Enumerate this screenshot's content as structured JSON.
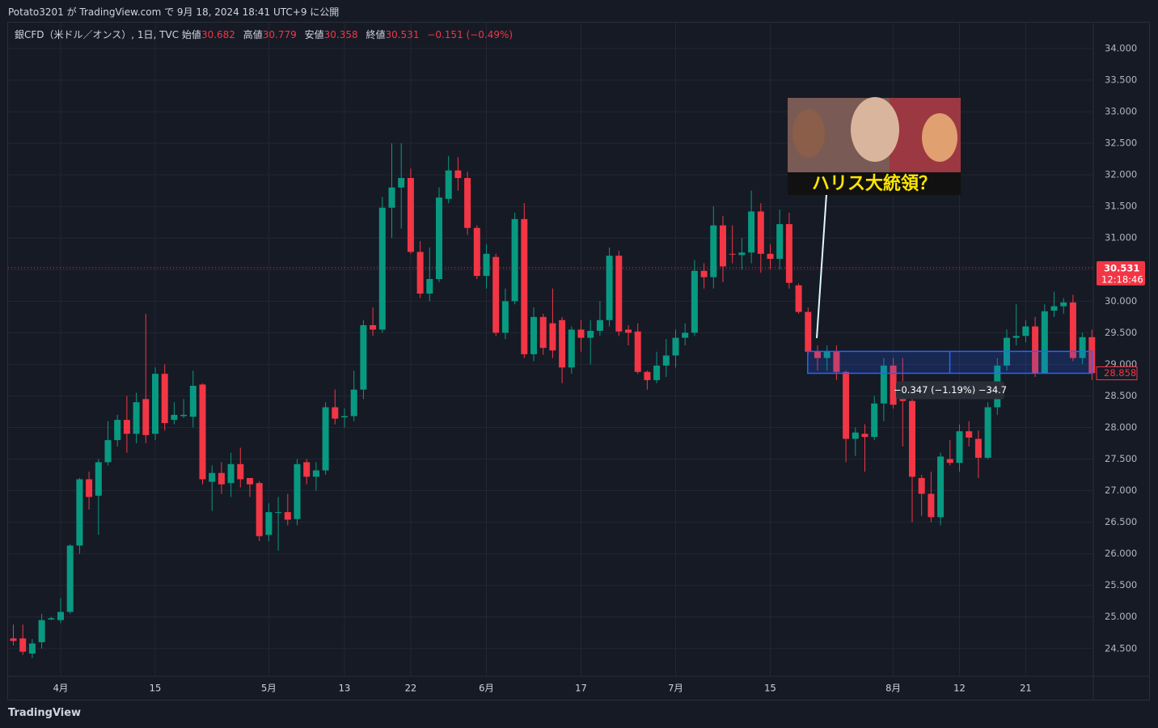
{
  "header": {
    "published": "Potato3201 が TradingView.com で 9月 18, 2024 18:41 UTC+9 に公開"
  },
  "legend": {
    "symbol": "銀CFD（米ドル／オンス）, 1日, TVC",
    "open_label": "始値",
    "open": "30.682",
    "high_label": "高値",
    "high": "30.779",
    "low_label": "安値",
    "low": "30.358",
    "close_label": "終値",
    "close": "30.531",
    "change": "−0.151 (−0.49%)"
  },
  "footer": {
    "brand": "TradingView"
  },
  "chart_data": {
    "type": "candlestick",
    "categories": [
      null,
      null,
      null,
      null,
      null,
      "4月",
      null,
      null,
      null,
      null,
      null,
      null,
      null,
      null,
      null,
      "15",
      null,
      null,
      null,
      null,
      null,
      null,
      null,
      null,
      null,
      null,
      null,
      "5月",
      null,
      null,
      null,
      null,
      null,
      null,
      null,
      "13",
      null,
      null,
      null,
      null,
      null,
      null,
      "22",
      null,
      null,
      null,
      null,
      null,
      null,
      null,
      "6月",
      null,
      null,
      null,
      null,
      null,
      null,
      null,
      null,
      null,
      "17",
      null,
      null,
      null,
      null,
      null,
      null,
      null,
      null,
      null,
      "7月",
      null,
      null,
      null,
      null,
      null,
      null,
      null,
      null,
      null,
      "15",
      null,
      null,
      null,
      null,
      null,
      null,
      null,
      null,
      null,
      null,
      null,
      null,
      "8月",
      null,
      null,
      null,
      null,
      null,
      null,
      "12",
      null,
      null,
      null,
      null,
      null,
      null,
      "21",
      null,
      null,
      null,
      null,
      null,
      null,
      null
    ],
    "open": [
      24.66,
      24.66,
      24.42,
      24.6,
      24.96,
      24.95,
      25.08,
      26.13,
      27.18,
      26.92,
      27.45,
      27.8,
      28.12,
      27.9,
      28.45,
      27.9,
      28.85,
      28.12,
      28.18,
      28.17,
      28.68,
      27.14,
      27.28,
      27.12,
      27.42,
      27.2,
      27.12,
      26.3,
      26.65,
      26.66,
      26.55,
      27.45,
      27.22,
      27.32,
      28.32,
      28.16,
      28.18,
      28.6,
      29.62,
      29.55,
      31.48,
      31.8,
      31.95,
      30.78,
      30.12,
      30.35,
      31.62,
      32.07,
      31.95,
      31.16,
      30.4,
      30.7,
      29.5,
      30.0,
      31.3,
      29.16,
      29.75,
      29.65,
      29.7,
      28.95,
      29.55,
      29.42,
      29.53,
      29.7,
      30.72,
      29.55,
      29.52,
      28.88,
      28.75,
      28.98,
      29.14,
      29.42,
      29.5,
      30.48,
      30.38,
      31.2,
      30.75,
      30.73,
      30.77,
      31.42,
      30.75,
      30.67,
      31.22,
      30.25,
      29.83,
      29.2,
      29.1,
      29.2,
      28.88,
      27.82,
      27.9,
      27.85,
      28.38,
      28.98,
      28.7,
      28.42,
      27.2,
      26.95,
      26.58,
      27.5,
      27.44,
      27.94,
      27.82,
      27.52,
      28.32,
      28.98,
      29.42,
      29.45,
      29.6,
      28.86,
      29.85,
      29.92,
      29.98,
      29.1,
      29.43
    ],
    "high": [
      24.88,
      24.88,
      24.65,
      25.05,
      25.0,
      25.3,
      26.15,
      27.2,
      27.3,
      27.5,
      28.1,
      28.2,
      28.5,
      28.55,
      29.8,
      28.95,
      29.0,
      28.4,
      28.45,
      28.9,
      28.7,
      27.4,
      27.45,
      27.6,
      27.68,
      27.2,
      27.15,
      26.8,
      26.9,
      26.95,
      27.5,
      27.5,
      27.45,
      28.4,
      28.6,
      28.3,
      28.9,
      29.7,
      29.9,
      31.65,
      32.5,
      32.5,
      32.1,
      30.95,
      30.85,
      31.8,
      32.3,
      32.28,
      32.05,
      31.2,
      30.9,
      30.75,
      30.2,
      31.4,
      31.55,
      29.9,
      29.8,
      30.2,
      29.75,
      29.6,
      29.7,
      29.7,
      30.0,
      30.85,
      30.8,
      29.62,
      29.65,
      28.9,
      29.2,
      29.4,
      29.55,
      29.65,
      30.65,
      30.6,
      31.5,
      31.35,
      31.2,
      31.0,
      31.75,
      31.55,
      30.9,
      31.45,
      31.4,
      30.28,
      29.9,
      29.3,
      29.3,
      29.3,
      28.9,
      28.0,
      28.05,
      28.5,
      29.1,
      29.1,
      29.1,
      28.5,
      27.25,
      27.3,
      27.6,
      27.8,
      28.05,
      28.1,
      27.95,
      28.4,
      29.1,
      29.55,
      29.95,
      29.7,
      29.75,
      29.95,
      30.15,
      30.05,
      30.1,
      29.5,
      29.55
    ],
    "low": [
      24.55,
      24.4,
      24.35,
      24.5,
      24.95,
      24.9,
      25.05,
      26.0,
      26.7,
      26.3,
      27.4,
      27.7,
      27.6,
      27.75,
      27.75,
      27.8,
      27.95,
      28.05,
      28.15,
      28.0,
      27.1,
      26.68,
      26.95,
      26.9,
      27.05,
      26.9,
      26.2,
      26.2,
      26.05,
      26.45,
      26.45,
      27.1,
      27.0,
      27.25,
      28.05,
      28.0,
      28.1,
      28.45,
      29.45,
      29.5,
      31.0,
      31.15,
      30.75,
      30.05,
      30.0,
      30.3,
      31.55,
      31.75,
      31.05,
      30.35,
      30.2,
      29.45,
      29.4,
      29.95,
      29.1,
      29.05,
      29.15,
      29.1,
      28.7,
      28.85,
      29.2,
      29.0,
      29.45,
      29.6,
      29.45,
      29.3,
      28.85,
      28.6,
      28.7,
      28.8,
      28.95,
      29.3,
      29.45,
      30.2,
      30.2,
      30.3,
      30.6,
      30.5,
      30.6,
      30.45,
      30.5,
      30.5,
      30.2,
      29.8,
      29.15,
      28.9,
      28.9,
      28.75,
      27.45,
      27.55,
      27.3,
      27.8,
      28.1,
      28.3,
      27.7,
      26.5,
      26.6,
      26.5,
      26.45,
      27.4,
      27.3,
      27.7,
      27.2,
      27.5,
      28.2,
      28.9,
      29.3,
      29.35,
      28.8,
      28.85,
      29.75,
      29.8,
      29.05,
      29.0,
      28.75
    ],
    "close": [
      24.62,
      24.45,
      24.58,
      24.95,
      24.98,
      25.08,
      26.13,
      27.18,
      26.9,
      27.45,
      27.8,
      28.12,
      27.9,
      28.4,
      27.88,
      28.85,
      28.07,
      28.2,
      28.2,
      28.66,
      27.18,
      27.28,
      27.1,
      27.42,
      27.18,
      27.1,
      26.28,
      26.66,
      26.66,
      26.54,
      27.42,
      27.22,
      27.32,
      28.32,
      28.14,
      28.18,
      28.6,
      29.62,
      29.55,
      31.48,
      31.8,
      31.95,
      30.78,
      30.12,
      30.35,
      31.64,
      32.07,
      31.95,
      31.16,
      30.4,
      30.75,
      29.5,
      30.0,
      31.3,
      29.16,
      29.75,
      29.26,
      29.22,
      28.95,
      29.55,
      29.42,
      29.53,
      29.7,
      30.72,
      29.52,
      29.5,
      28.88,
      28.75,
      28.98,
      29.14,
      29.42,
      29.5,
      30.48,
      30.38,
      31.2,
      30.55,
      30.74,
      30.77,
      31.42,
      30.75,
      30.67,
      31.22,
      30.29,
      29.83,
      29.2,
      29.1,
      29.2,
      28.88,
      27.82,
      27.92,
      27.85,
      28.38,
      28.98,
      28.36,
      28.42,
      27.22,
      26.95,
      26.58,
      27.54,
      27.44,
      27.94,
      27.84,
      27.52,
      28.32,
      28.98,
      29.42,
      29.45,
      29.6,
      28.86,
      29.84,
      29.92,
      29.98,
      29.1,
      29.43,
      28.86
    ],
    "up_color": "#089981",
    "down_color": "#f23645",
    "ylim": [
      23.69,
      34.41
    ],
    "yticks": [
      {
        "value": 24.5,
        "label": "24.500"
      },
      {
        "value": 25,
        "label": "25.000"
      },
      {
        "value": 25.5,
        "label": "25.500"
      },
      {
        "value": 26,
        "label": "26.000"
      },
      {
        "value": 26.5,
        "label": "26.500"
      },
      {
        "value": 27,
        "label": "27.000"
      },
      {
        "value": 27.5,
        "label": "27.500"
      },
      {
        "value": 28,
        "label": "28.000"
      },
      {
        "value": 28.5,
        "label": "28.500"
      },
      {
        "value": 29,
        "label": "29.000"
      },
      {
        "value": 29.5,
        "label": "29.500"
      },
      {
        "value": 30,
        "label": "30.000"
      },
      {
        "value": 30.5,
        "label": "30.500"
      },
      {
        "value": 31,
        "label": "31.000"
      },
      {
        "value": 31.5,
        "label": "31.500"
      },
      {
        "value": 32,
        "label": "32.000"
      },
      {
        "value": 32.5,
        "label": "32.500"
      },
      {
        "value": 33,
        "label": "33.000"
      },
      {
        "value": 33.5,
        "label": "33.500"
      },
      {
        "value": 34,
        "label": "34.000"
      }
    ],
    "grid": true,
    "last_price": 30.531,
    "countdown": "12:18:46",
    "measure": {
      "from": 29.205,
      "to": 28.858,
      "label": "−0.347 (−1.19%) −34.7"
    },
    "annotation": {
      "caption": "ハリス大統領？"
    }
  }
}
